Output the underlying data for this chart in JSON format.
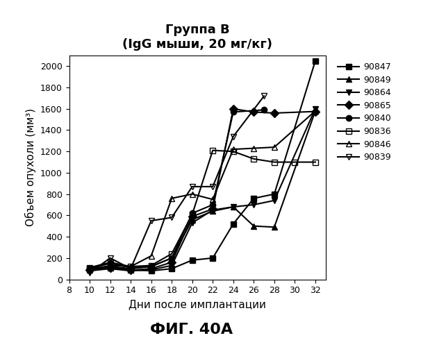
{
  "title_line1": "Группа В",
  "title_line2": "(IgG мыши, 20 мг/кг)",
  "xlabel": "Дни после имплантации",
  "ylabel": "Объем опухоли (мм³)",
  "fig_label": "ФИГ. 40А",
  "xlim": [
    8,
    33
  ],
  "ylim": [
    0,
    2100
  ],
  "xticks": [
    8,
    10,
    12,
    14,
    16,
    18,
    20,
    22,
    24,
    26,
    28,
    30,
    32
  ],
  "yticks": [
    0,
    200,
    400,
    600,
    800,
    1000,
    1200,
    1400,
    1600,
    1800,
    2000
  ],
  "series": [
    {
      "label": "90847",
      "x": [
        10,
        12,
        14,
        16,
        18,
        20,
        22,
        24,
        26,
        28,
        32
      ],
      "y": [
        100,
        110,
        90,
        80,
        100,
        180,
        200,
        520,
        760,
        800,
        2050
      ],
      "marker": "s",
      "fillstyle": "full",
      "linestyle": "-",
      "color": "black"
    },
    {
      "label": "90849",
      "x": [
        10,
        12,
        14,
        16,
        18,
        20,
        22,
        24,
        26,
        28,
        32
      ],
      "y": [
        100,
        120,
        100,
        120,
        200,
        560,
        640,
        680,
        500,
        490,
        1580
      ],
      "marker": "^",
      "fillstyle": "full",
      "linestyle": "-",
      "color": "black"
    },
    {
      "label": "90864",
      "x": [
        10,
        12,
        14,
        16,
        18,
        20,
        22,
        24,
        26,
        28,
        32
      ],
      "y": [
        80,
        100,
        80,
        90,
        130,
        530,
        650,
        680,
        700,
        740,
        1600
      ],
      "marker": "v",
      "fillstyle": "full",
      "linestyle": "-",
      "color": "black"
    },
    {
      "label": "90865",
      "x": [
        10,
        12,
        14,
        16,
        18,
        20,
        22,
        24,
        26,
        28,
        32
      ],
      "y": [
        90,
        110,
        85,
        100,
        160,
        590,
        660,
        1600,
        1570,
        1560,
        1575
      ],
      "marker": "D",
      "fillstyle": "full",
      "linestyle": "-",
      "color": "black"
    },
    {
      "label": "90840",
      "x": [
        10,
        12,
        14,
        16,
        18,
        20,
        22,
        24,
        27
      ],
      "y": [
        100,
        150,
        110,
        120,
        200,
        620,
        700,
        1570,
        1590
      ],
      "marker": "o",
      "fillstyle": "full",
      "linestyle": "-",
      "color": "black"
    },
    {
      "label": "90836",
      "x": [
        10,
        12,
        14,
        16,
        18,
        20,
        22,
        24,
        26,
        28,
        30,
        32
      ],
      "y": [
        110,
        160,
        120,
        130,
        240,
        610,
        1210,
        1200,
        1130,
        1100,
        1100,
        1100
      ],
      "marker": "s",
      "fillstyle": "none",
      "linestyle": "-",
      "color": "black"
    },
    {
      "label": "90846",
      "x": [
        10,
        12,
        14,
        16,
        18,
        20,
        22,
        24,
        26,
        28,
        32
      ],
      "y": [
        90,
        130,
        120,
        220,
        760,
        800,
        750,
        1220,
        1230,
        1240,
        1580
      ],
      "marker": "^",
      "fillstyle": "none",
      "linestyle": "-",
      "color": "black"
    },
    {
      "label": "90839",
      "x": [
        10,
        12,
        14,
        16,
        18,
        20,
        22,
        24,
        27
      ],
      "y": [
        60,
        200,
        100,
        550,
        580,
        870,
        870,
        1340,
        1720
      ],
      "marker": "v",
      "fillstyle": "none",
      "linestyle": "-",
      "color": "black"
    }
  ]
}
